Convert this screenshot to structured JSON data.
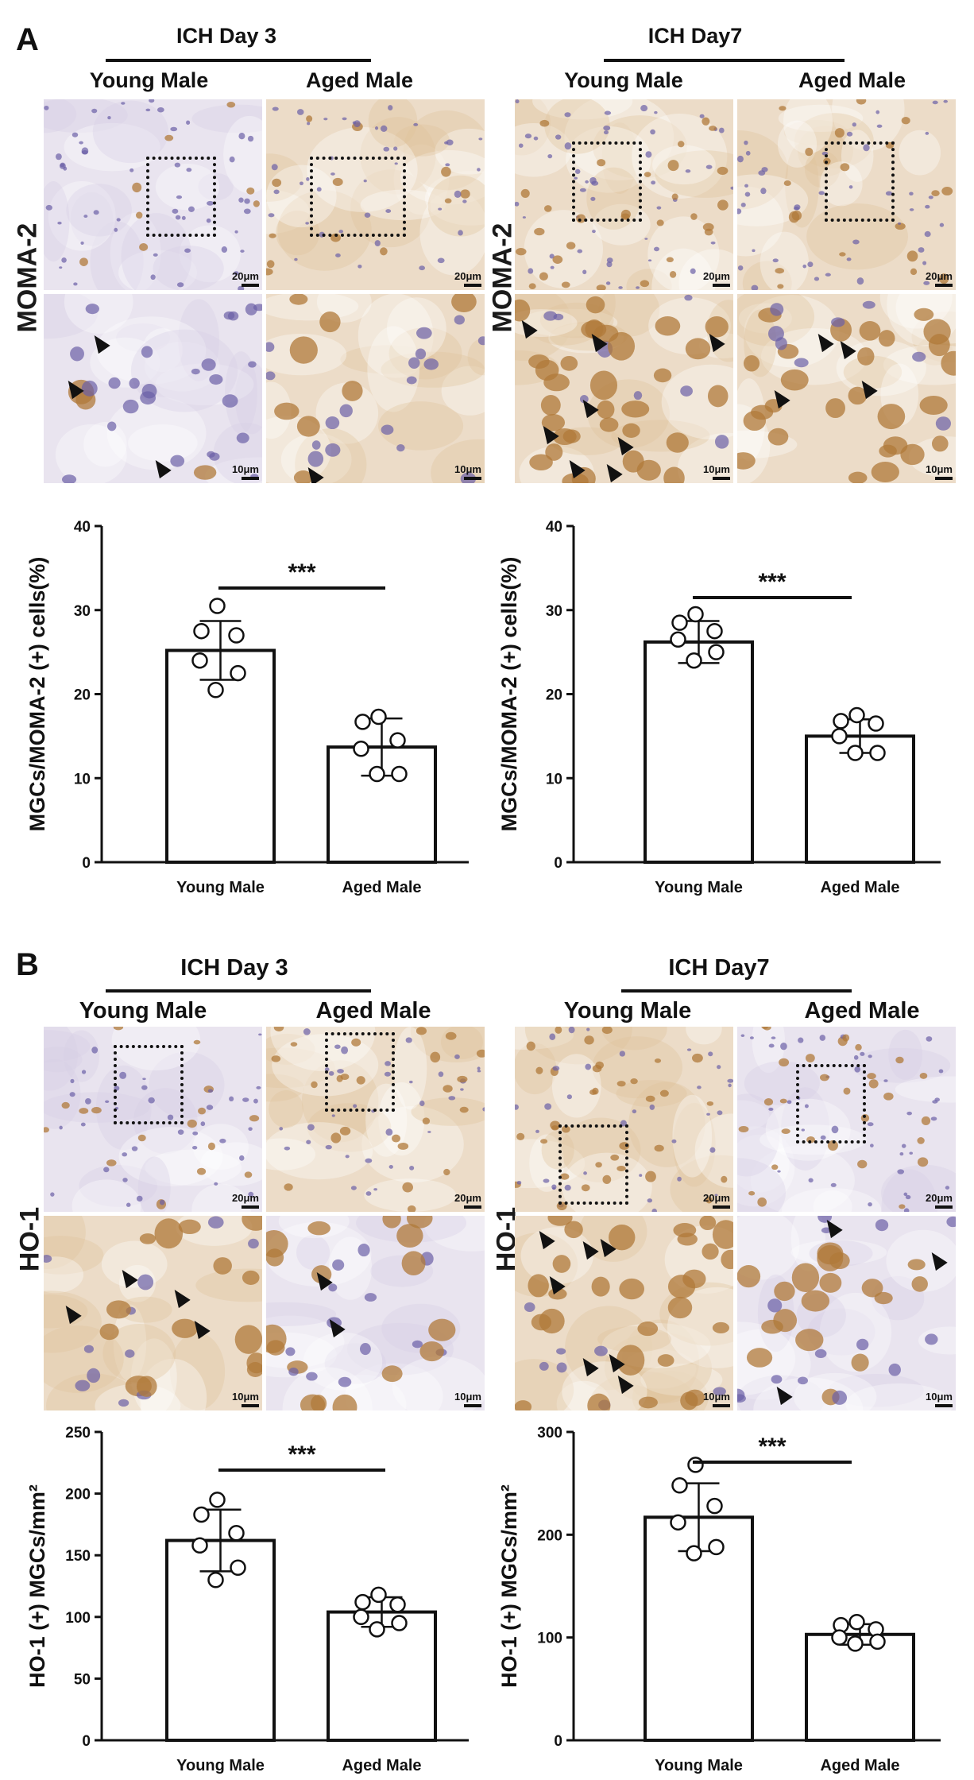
{
  "panels": [
    {
      "letter": "A",
      "stain_label": "MOMA-2",
      "groups": [
        {
          "title": "ICH Day 3",
          "columns": [
            "Young Male",
            "Aged Male"
          ]
        },
        {
          "title": "ICH Day7",
          "columns": [
            "Young Male",
            "Aged Male"
          ]
        }
      ],
      "scale_top": "20μm",
      "scale_bottom": "10μm"
    },
    {
      "letter": "B",
      "stain_label": "HO-1",
      "groups": [
        {
          "title": "ICH Day 3",
          "columns": [
            "Young Male",
            "Aged Male"
          ]
        },
        {
          "title": "ICH Day7",
          "columns": [
            "Young Male",
            "Aged Male"
          ]
        }
      ],
      "scale_top": "20μm",
      "scale_bottom": "10μm"
    }
  ],
  "colors": {
    "tissue": "#e9e4ef",
    "nucleus": "#6b5fa6",
    "dab": "#b07a3a",
    "ink": "#111111"
  },
  "chart_data": [
    {
      "type": "bar",
      "categories": [
        "Young Male",
        "Aged Male"
      ],
      "values": [
        25.2,
        13.7
      ],
      "error": [
        3.5,
        3.4
      ],
      "points": [
        [
          30.5,
          27.5,
          27.0,
          24.0,
          22.5,
          20.5
        ],
        [
          17.3,
          16.7,
          14.5,
          13.5,
          10.5,
          10.5
        ]
      ],
      "ylabel": "MGCs/MOMA-2 (+) cells(%)",
      "ylim": [
        0,
        40
      ],
      "yticks": [
        0,
        10,
        20,
        30,
        40
      ],
      "significance": "***"
    },
    {
      "type": "bar",
      "categories": [
        "Young Male",
        "Aged Male"
      ],
      "values": [
        26.2,
        15.0
      ],
      "error": [
        2.5,
        2.0
      ],
      "points": [
        [
          29.5,
          28.5,
          27.5,
          26.5,
          25.0,
          24.0
        ],
        [
          17.5,
          16.8,
          16.5,
          15.0,
          13.0,
          13.0
        ]
      ],
      "ylabel": "MGCs/MOMA-2 (+) cells(%)",
      "ylim": [
        0,
        40
      ],
      "yticks": [
        0,
        10,
        20,
        30,
        40
      ],
      "significance": "***"
    },
    {
      "type": "bar",
      "categories": [
        "Young Male",
        "Aged Male"
      ],
      "values": [
        162,
        104
      ],
      "error": [
        25,
        12
      ],
      "points": [
        [
          195,
          183,
          168,
          158,
          140,
          130
        ],
        [
          118,
          112,
          110,
          100,
          95,
          90
        ]
      ],
      "ylabel": "HO-1 (+) MGCs/mm²",
      "ylim": [
        0,
        250
      ],
      "yticks": [
        0,
        50,
        100,
        150,
        200,
        250
      ],
      "significance": "***"
    },
    {
      "type": "bar",
      "categories": [
        "Young Male",
        "Aged Male"
      ],
      "values": [
        217,
        103
      ],
      "error": [
        33,
        10
      ],
      "points": [
        [
          268,
          248,
          228,
          212,
          188,
          182
        ],
        [
          115,
          112,
          108,
          100,
          96,
          94
        ]
      ],
      "ylabel": "HO-1 (+) MGCs/mm²",
      "ylim": [
        0,
        300
      ],
      "yticks": [
        0,
        100,
        200,
        300
      ],
      "significance": "***"
    }
  ]
}
